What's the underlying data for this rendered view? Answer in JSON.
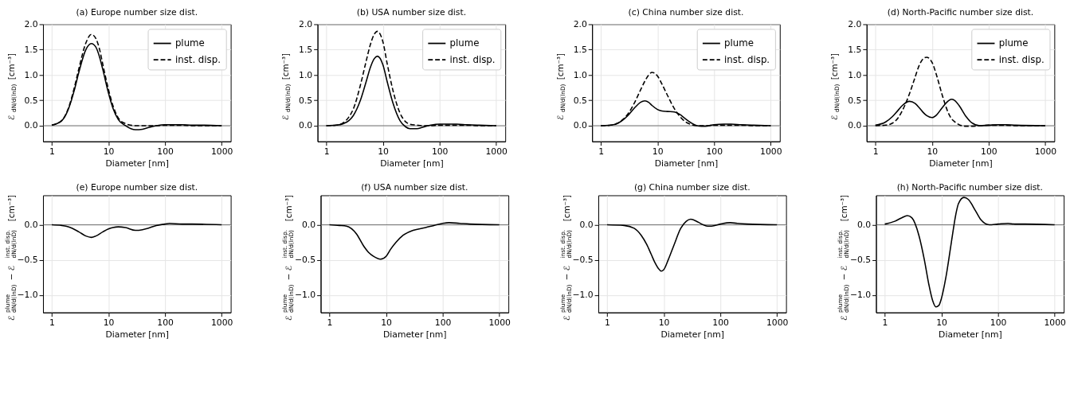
{
  "chart_data": [
    {
      "type": "line",
      "title": "(a) Europe number size dist.",
      "xlabel": "Diameter [nm]",
      "ylabel": "ℰ$_{dN/d(lnD)}$ [cm⁻³]",
      "log": "x",
      "grid": true,
      "legend": "top right",
      "xlim": [
        0.7,
        1450
      ],
      "xticks": [
        1,
        10,
        100,
        1000
      ],
      "ylim": [
        -0.31,
        2.0
      ],
      "yticks": [
        {
          "value": 0,
          "label": "0.0"
        },
        {
          "value": 0.5,
          "label": "0.5"
        },
        {
          "value": 1,
          "label": "1.0"
        },
        {
          "value": 1.5,
          "label": "1.5"
        },
        {
          "value": 2,
          "label": "2.0"
        }
      ],
      "ref_lines": [
        {
          "axis": "y",
          "value": 0,
          "color": "#555555"
        }
      ],
      "series": [
        {
          "name": "plume",
          "color": "#000000",
          "line_style": "solid",
          "x": [
            1,
            1.5,
            2,
            2.5,
            3,
            4,
            5,
            6,
            7,
            8,
            10,
            12,
            15,
            20,
            25,
            30,
            40,
            50,
            70,
            100,
            150,
            200,
            300,
            500,
            1000
          ],
          "values": [
            0.01,
            0.1,
            0.35,
            0.7,
            1.05,
            1.5,
            1.62,
            1.55,
            1.35,
            1.1,
            0.65,
            0.35,
            0.12,
            0.0,
            -0.06,
            -0.08,
            -0.07,
            -0.04,
            0.0,
            0.02,
            0.02,
            0.02,
            0.01,
            0.01,
            0.0
          ]
        },
        {
          "name": "inst. disp.",
          "color": "#000000",
          "line_style": "dashed",
          "x": [
            1,
            1.5,
            2,
            2.5,
            3,
            4,
            5,
            6,
            7,
            8,
            10,
            12,
            15,
            20,
            25,
            30,
            40,
            50,
            70,
            100,
            150,
            200,
            300,
            500,
            1000
          ],
          "values": [
            0.01,
            0.1,
            0.37,
            0.75,
            1.12,
            1.63,
            1.8,
            1.72,
            1.5,
            1.2,
            0.72,
            0.4,
            0.15,
            0.04,
            0.01,
            0.0,
            0.0,
            0.0,
            0.0,
            0.01,
            0.01,
            0.01,
            0.0,
            0.0,
            0.0
          ]
        }
      ]
    },
    {
      "type": "line",
      "title": "(b) USA number size dist.",
      "xlabel": "Diameter [nm]",
      "ylabel": "ℰ$_{dN/d(lnD)}$ [cm⁻³]",
      "log": "x",
      "grid": true,
      "legend": "top right",
      "xlim": [
        0.7,
        1450
      ],
      "xticks": [
        1,
        10,
        100,
        1000
      ],
      "ylim": [
        -0.31,
        2.0
      ],
      "yticks": [
        {
          "value": 0,
          "label": "0.0"
        },
        {
          "value": 0.5,
          "label": "0.5"
        },
        {
          "value": 1,
          "label": "1.0"
        },
        {
          "value": 1.5,
          "label": "1.5"
        },
        {
          "value": 2,
          "label": "2.0"
        }
      ],
      "ref_lines": [
        {
          "axis": "y",
          "value": 0,
          "color": "#555555"
        }
      ],
      "series": [
        {
          "name": "plume",
          "color": "#000000",
          "line_style": "solid",
          "x": [
            1,
            1.5,
            2,
            2.5,
            3,
            4,
            5,
            6,
            7,
            8,
            10,
            12,
            15,
            20,
            25,
            30,
            40,
            50,
            70,
            100,
            150,
            200,
            300,
            500,
            1000
          ],
          "values": [
            0.0,
            0.01,
            0.04,
            0.1,
            0.2,
            0.5,
            0.85,
            1.15,
            1.32,
            1.37,
            1.2,
            0.85,
            0.45,
            0.1,
            -0.02,
            -0.06,
            -0.06,
            -0.03,
            0.01,
            0.03,
            0.03,
            0.03,
            0.02,
            0.01,
            0.0
          ]
        },
        {
          "name": "inst. disp.",
          "color": "#000000",
          "line_style": "dashed",
          "x": [
            1,
            1.5,
            2,
            2.5,
            3,
            4,
            5,
            6,
            7,
            8,
            10,
            12,
            15,
            20,
            25,
            30,
            40,
            50,
            70,
            100,
            150,
            200,
            300,
            500,
            1000
          ],
          "values": [
            0.0,
            0.01,
            0.06,
            0.17,
            0.33,
            0.8,
            1.25,
            1.6,
            1.8,
            1.86,
            1.65,
            1.2,
            0.7,
            0.25,
            0.08,
            0.03,
            0.01,
            0.0,
            0.0,
            0.01,
            0.01,
            0.01,
            0.01,
            0.0,
            0.0
          ]
        }
      ]
    },
    {
      "type": "line",
      "title": "(c) China number size dist.",
      "xlabel": "Diameter [nm]",
      "ylabel": "ℰ$_{dN/d(lnD)}$ [cm⁻³]",
      "log": "x",
      "grid": true,
      "legend": "top right",
      "xlim": [
        0.7,
        1450
      ],
      "xticks": [
        1,
        10,
        100,
        1000
      ],
      "ylim": [
        -0.31,
        2.0
      ],
      "yticks": [
        {
          "value": 0,
          "label": "0.0"
        },
        {
          "value": 0.5,
          "label": "0.5"
        },
        {
          "value": 1,
          "label": "1.0"
        },
        {
          "value": 1.5,
          "label": "1.5"
        },
        {
          "value": 2,
          "label": "2.0"
        }
      ],
      "ref_lines": [
        {
          "axis": "y",
          "value": 0,
          "color": "#555555"
        }
      ],
      "series": [
        {
          "name": "plume",
          "color": "#000000",
          "line_style": "solid",
          "x": [
            1,
            1.5,
            2,
            2.5,
            3,
            4,
            5,
            6,
            7,
            8,
            10,
            12,
            15,
            20,
            25,
            30,
            40,
            50,
            60,
            70,
            100,
            150,
            200,
            300,
            500,
            1000
          ],
          "values": [
            0.0,
            0.01,
            0.05,
            0.12,
            0.2,
            0.36,
            0.46,
            0.49,
            0.46,
            0.4,
            0.32,
            0.29,
            0.28,
            0.27,
            0.22,
            0.15,
            0.05,
            0.0,
            -0.01,
            -0.01,
            0.02,
            0.03,
            0.03,
            0.02,
            0.01,
            0.0
          ]
        },
        {
          "name": "inst. disp.",
          "color": "#000000",
          "line_style": "dashed",
          "x": [
            1,
            1.5,
            2,
            2.5,
            3,
            4,
            5,
            6,
            7,
            8,
            10,
            12,
            15,
            20,
            25,
            30,
            40,
            50,
            60,
            70,
            100,
            150,
            200,
            300,
            500,
            1000
          ],
          "values": [
            0.0,
            0.01,
            0.05,
            0.13,
            0.23,
            0.47,
            0.7,
            0.88,
            1.0,
            1.05,
            0.98,
            0.82,
            0.6,
            0.33,
            0.18,
            0.09,
            0.02,
            0.0,
            0.0,
            0.0,
            0.01,
            0.01,
            0.01,
            0.01,
            0.0,
            0.0
          ]
        }
      ]
    },
    {
      "type": "line",
      "title": "(d) North-Pacific number size dist.",
      "xlabel": "Diameter [nm]",
      "ylabel": "ℰ$_{dN/d(lnD)}$ [cm⁻³]",
      "log": "x",
      "grid": true,
      "legend": "top right",
      "xlim": [
        0.7,
        1450
      ],
      "xticks": [
        1,
        10,
        100,
        1000
      ],
      "ylim": [
        -0.31,
        2.0
      ],
      "yticks": [
        {
          "value": 0,
          "label": "0.0"
        },
        {
          "value": 0.5,
          "label": "0.5"
        },
        {
          "value": 1,
          "label": "1.0"
        },
        {
          "value": 1.5,
          "label": "1.5"
        },
        {
          "value": 2,
          "label": "2.0"
        }
      ],
      "ref_lines": [
        {
          "axis": "y",
          "value": 0,
          "color": "#555555"
        }
      ],
      "series": [
        {
          "name": "plume",
          "color": "#000000",
          "line_style": "solid",
          "x": [
            1,
            1.5,
            2,
            2.5,
            3,
            4,
            5,
            6,
            7,
            8,
            10,
            12,
            15,
            20,
            22,
            25,
            30,
            40,
            50,
            70,
            100,
            150,
            200,
            300,
            1000
          ],
          "values": [
            0.01,
            0.07,
            0.18,
            0.3,
            0.4,
            0.48,
            0.44,
            0.35,
            0.26,
            0.2,
            0.16,
            0.21,
            0.35,
            0.5,
            0.52,
            0.5,
            0.4,
            0.18,
            0.06,
            0.0,
            0.01,
            0.02,
            0.02,
            0.01,
            0.0
          ]
        },
        {
          "name": "inst. disp.",
          "color": "#000000",
          "line_style": "dashed",
          "x": [
            1,
            1.5,
            2,
            2.5,
            3,
            4,
            5,
            6,
            7,
            8,
            10,
            12,
            15,
            20,
            22,
            25,
            30,
            40,
            50,
            70,
            100,
            150,
            200,
            300,
            1000
          ],
          "values": [
            0.0,
            0.01,
            0.05,
            0.15,
            0.3,
            0.63,
            0.95,
            1.2,
            1.32,
            1.35,
            1.25,
            1.0,
            0.62,
            0.22,
            0.14,
            0.08,
            0.02,
            -0.01,
            -0.01,
            0.0,
            0.01,
            0.01,
            0.01,
            0.0,
            0.0
          ]
        }
      ]
    },
    {
      "type": "line",
      "title": "(e) Europe number size dist.",
      "xlabel": "Diameter [nm]",
      "ylabel": "ℰ$^{plume}$$_{dN/d(lnD)}$ − ℰ$^{inst. disp.}$$_{dN/d(lnD)}$ [cm⁻³]",
      "log": "x",
      "grid": true,
      "xlim": [
        0.7,
        1450
      ],
      "xticks": [
        1,
        10,
        100,
        1000
      ],
      "ylim": [
        -1.25,
        0.42
      ],
      "yticks": [
        {
          "value": -1,
          "label": "−1.0"
        },
        {
          "value": -0.5,
          "label": "−0.5"
        },
        {
          "value": 0,
          "label": "0.0"
        }
      ],
      "ref_lines": [
        {
          "axis": "y",
          "value": 0,
          "color": "#555555"
        }
      ],
      "series": [
        {
          "color": "#000000",
          "line_style": "solid",
          "x": [
            1,
            1.5,
            2,
            3,
            4,
            5,
            6,
            8,
            10,
            12,
            15,
            20,
            30,
            40,
            50,
            70,
            100,
            120,
            200,
            300,
            1000
          ],
          "values": [
            0.0,
            -0.01,
            -0.03,
            -0.1,
            -0.16,
            -0.18,
            -0.16,
            -0.1,
            -0.06,
            -0.04,
            -0.03,
            -0.04,
            -0.08,
            -0.07,
            -0.05,
            -0.01,
            0.01,
            0.02,
            0.01,
            0.01,
            0.0
          ]
        }
      ]
    },
    {
      "type": "line",
      "title": "(f) USA number size dist.",
      "xlabel": "Diameter [nm]",
      "ylabel": "ℰ$^{plume}$$_{dN/d(lnD)}$ − ℰ$^{inst. disp.}$$_{dN/d(lnD)}$ [cm⁻³]",
      "log": "x",
      "grid": true,
      "xlim": [
        0.7,
        1450
      ],
      "xticks": [
        1,
        10,
        100,
        1000
      ],
      "ylim": [
        -1.25,
        0.42
      ],
      "yticks": [
        {
          "value": -1,
          "label": "−1.0"
        },
        {
          "value": -0.5,
          "label": "−0.5"
        },
        {
          "value": 0,
          "label": "0.0"
        }
      ],
      "ref_lines": [
        {
          "axis": "y",
          "value": 0,
          "color": "#555555"
        }
      ],
      "series": [
        {
          "color": "#000000",
          "line_style": "solid",
          "x": [
            1,
            1.5,
            2,
            3,
            4,
            5,
            6,
            8,
            10,
            12,
            15,
            20,
            30,
            50,
            70,
            100,
            130,
            200,
            300,
            1000
          ],
          "values": [
            0.0,
            -0.01,
            -0.02,
            -0.13,
            -0.3,
            -0.4,
            -0.45,
            -0.49,
            -0.45,
            -0.35,
            -0.25,
            -0.15,
            -0.08,
            -0.04,
            -0.01,
            0.02,
            0.03,
            0.02,
            0.01,
            0.0
          ]
        }
      ]
    },
    {
      "type": "line",
      "title": "(g) China number size dist.",
      "xlabel": "Diameter [nm]",
      "ylabel": "ℰ$^{plume}$$_{dN/d(lnD)}$ − ℰ$^{inst. disp.}$$_{dN/d(lnD)}$ [cm⁻³]",
      "log": "x",
      "grid": true,
      "xlim": [
        0.7,
        1450
      ],
      "xticks": [
        1,
        10,
        100,
        1000
      ],
      "ylim": [
        -1.25,
        0.42
      ],
      "yticks": [
        {
          "value": -1,
          "label": "−1.0"
        },
        {
          "value": -0.5,
          "label": "−0.5"
        },
        {
          "value": 0,
          "label": "0.0"
        }
      ],
      "ref_lines": [
        {
          "axis": "y",
          "value": 0,
          "color": "#555555"
        }
      ],
      "series": [
        {
          "color": "#000000",
          "line_style": "solid",
          "x": [
            1,
            2,
            3,
            4,
            5,
            6,
            7,
            8,
            9,
            10,
            12,
            15,
            20,
            25,
            30,
            40,
            50,
            60,
            70,
            100,
            150,
            200,
            300,
            1000
          ],
          "values": [
            0.0,
            -0.01,
            -0.05,
            -0.15,
            -0.28,
            -0.42,
            -0.54,
            -0.62,
            -0.66,
            -0.64,
            -0.5,
            -0.3,
            -0.05,
            0.05,
            0.08,
            0.04,
            0.0,
            -0.02,
            -0.02,
            0.01,
            0.03,
            0.02,
            0.01,
            0.0
          ]
        }
      ]
    },
    {
      "type": "line",
      "title": "(h) North-Pacific number size dist.",
      "xlabel": "Diameter [nm]",
      "ylabel": "ℰ$^{plume}$$_{dN/d(lnD)}$ − ℰ$^{inst. disp.}$$_{dN/d(lnD)}$ [cm⁻³]",
      "log": "x",
      "grid": true,
      "xlim": [
        0.7,
        1450
      ],
      "xticks": [
        1,
        10,
        100,
        1000
      ],
      "ylim": [
        -1.25,
        0.42
      ],
      "yticks": [
        {
          "value": -1,
          "label": "−1.0"
        },
        {
          "value": -0.5,
          "label": "−0.5"
        },
        {
          "value": 0,
          "label": "0.0"
        }
      ],
      "ref_lines": [
        {
          "axis": "y",
          "value": 0,
          "color": "#555555"
        }
      ],
      "series": [
        {
          "color": "#000000",
          "line_style": "solid",
          "x": [
            1,
            1.5,
            2,
            2.5,
            3,
            4,
            5,
            6,
            7,
            8,
            9,
            10,
            12,
            15,
            18,
            20,
            25,
            30,
            40,
            50,
            70,
            100,
            150,
            200,
            300,
            1000
          ],
          "values": [
            0.01,
            0.05,
            0.1,
            0.13,
            0.1,
            -0.15,
            -0.5,
            -0.85,
            -1.08,
            -1.17,
            -1.15,
            -1.05,
            -0.75,
            -0.25,
            0.15,
            0.3,
            0.39,
            0.36,
            0.2,
            0.07,
            0.0,
            0.01,
            0.02,
            0.01,
            0.01,
            0.0
          ]
        }
      ]
    }
  ]
}
